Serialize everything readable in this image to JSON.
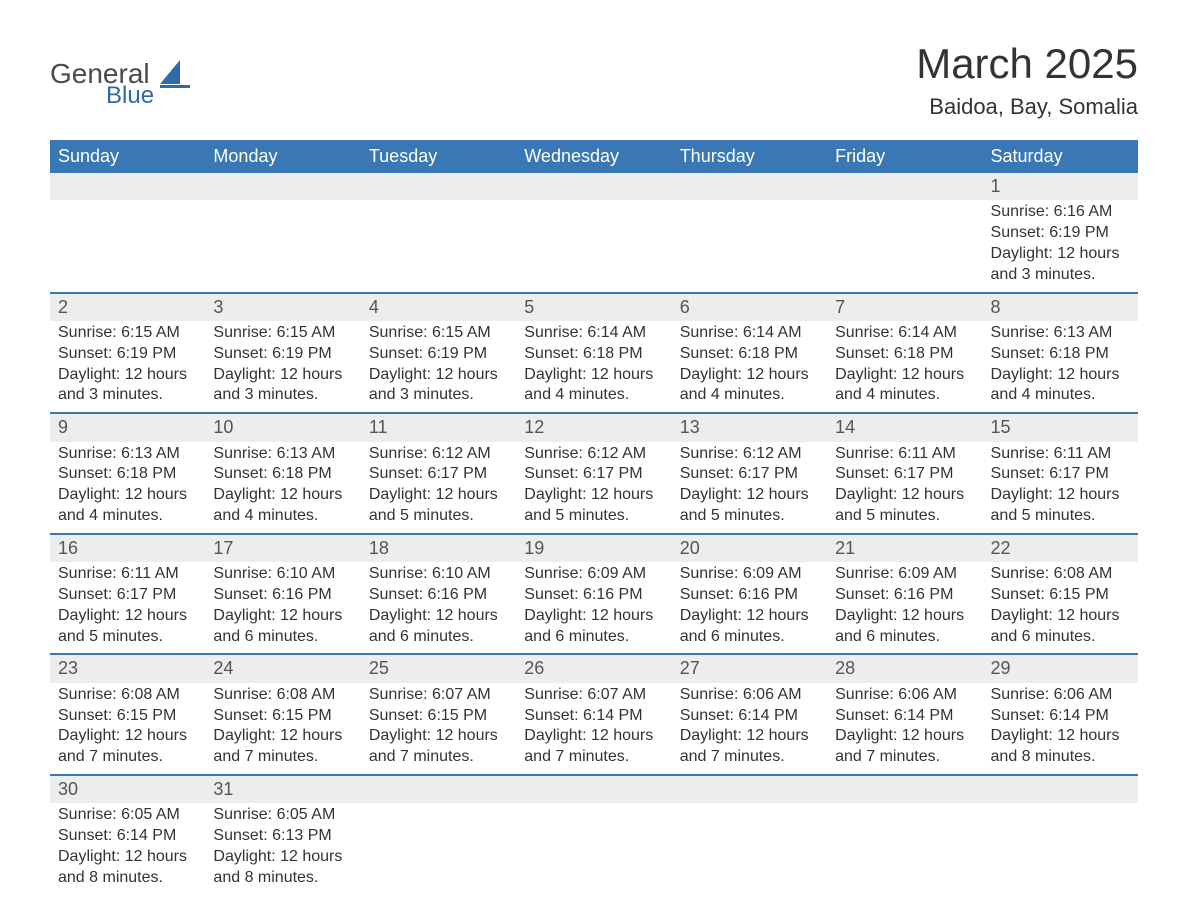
{
  "logo": {
    "word1": "General",
    "word2": "Blue",
    "text_color": "#4a4a4a",
    "accent_color": "#2f6aa8"
  },
  "title": "March 2025",
  "subtitle": "Baidoa, Bay, Somalia",
  "colors": {
    "header_bg": "#3a77b5",
    "header_text": "#ffffff",
    "daynum_bg": "#ededed",
    "week_border": "#3a77b5",
    "body_text": "#333333"
  },
  "day_names": [
    "Sunday",
    "Monday",
    "Tuesday",
    "Wednesday",
    "Thursday",
    "Friday",
    "Saturday"
  ],
  "weeks": [
    [
      null,
      null,
      null,
      null,
      null,
      null,
      {
        "n": "1",
        "sunrise": "Sunrise: 6:16 AM",
        "sunset": "Sunset: 6:19 PM",
        "daylight": "Daylight: 12 hours and 3 minutes."
      }
    ],
    [
      {
        "n": "2",
        "sunrise": "Sunrise: 6:15 AM",
        "sunset": "Sunset: 6:19 PM",
        "daylight": "Daylight: 12 hours and 3 minutes."
      },
      {
        "n": "3",
        "sunrise": "Sunrise: 6:15 AM",
        "sunset": "Sunset: 6:19 PM",
        "daylight": "Daylight: 12 hours and 3 minutes."
      },
      {
        "n": "4",
        "sunrise": "Sunrise: 6:15 AM",
        "sunset": "Sunset: 6:19 PM",
        "daylight": "Daylight: 12 hours and 3 minutes."
      },
      {
        "n": "5",
        "sunrise": "Sunrise: 6:14 AM",
        "sunset": "Sunset: 6:18 PM",
        "daylight": "Daylight: 12 hours and 4 minutes."
      },
      {
        "n": "6",
        "sunrise": "Sunrise: 6:14 AM",
        "sunset": "Sunset: 6:18 PM",
        "daylight": "Daylight: 12 hours and 4 minutes."
      },
      {
        "n": "7",
        "sunrise": "Sunrise: 6:14 AM",
        "sunset": "Sunset: 6:18 PM",
        "daylight": "Daylight: 12 hours and 4 minutes."
      },
      {
        "n": "8",
        "sunrise": "Sunrise: 6:13 AM",
        "sunset": "Sunset: 6:18 PM",
        "daylight": "Daylight: 12 hours and 4 minutes."
      }
    ],
    [
      {
        "n": "9",
        "sunrise": "Sunrise: 6:13 AM",
        "sunset": "Sunset: 6:18 PM",
        "daylight": "Daylight: 12 hours and 4 minutes."
      },
      {
        "n": "10",
        "sunrise": "Sunrise: 6:13 AM",
        "sunset": "Sunset: 6:18 PM",
        "daylight": "Daylight: 12 hours and 4 minutes."
      },
      {
        "n": "11",
        "sunrise": "Sunrise: 6:12 AM",
        "sunset": "Sunset: 6:17 PM",
        "daylight": "Daylight: 12 hours and 5 minutes."
      },
      {
        "n": "12",
        "sunrise": "Sunrise: 6:12 AM",
        "sunset": "Sunset: 6:17 PM",
        "daylight": "Daylight: 12 hours and 5 minutes."
      },
      {
        "n": "13",
        "sunrise": "Sunrise: 6:12 AM",
        "sunset": "Sunset: 6:17 PM",
        "daylight": "Daylight: 12 hours and 5 minutes."
      },
      {
        "n": "14",
        "sunrise": "Sunrise: 6:11 AM",
        "sunset": "Sunset: 6:17 PM",
        "daylight": "Daylight: 12 hours and 5 minutes."
      },
      {
        "n": "15",
        "sunrise": "Sunrise: 6:11 AM",
        "sunset": "Sunset: 6:17 PM",
        "daylight": "Daylight: 12 hours and 5 minutes."
      }
    ],
    [
      {
        "n": "16",
        "sunrise": "Sunrise: 6:11 AM",
        "sunset": "Sunset: 6:17 PM",
        "daylight": "Daylight: 12 hours and 5 minutes."
      },
      {
        "n": "17",
        "sunrise": "Sunrise: 6:10 AM",
        "sunset": "Sunset: 6:16 PM",
        "daylight": "Daylight: 12 hours and 6 minutes."
      },
      {
        "n": "18",
        "sunrise": "Sunrise: 6:10 AM",
        "sunset": "Sunset: 6:16 PM",
        "daylight": "Daylight: 12 hours and 6 minutes."
      },
      {
        "n": "19",
        "sunrise": "Sunrise: 6:09 AM",
        "sunset": "Sunset: 6:16 PM",
        "daylight": "Daylight: 12 hours and 6 minutes."
      },
      {
        "n": "20",
        "sunrise": "Sunrise: 6:09 AM",
        "sunset": "Sunset: 6:16 PM",
        "daylight": "Daylight: 12 hours and 6 minutes."
      },
      {
        "n": "21",
        "sunrise": "Sunrise: 6:09 AM",
        "sunset": "Sunset: 6:16 PM",
        "daylight": "Daylight: 12 hours and 6 minutes."
      },
      {
        "n": "22",
        "sunrise": "Sunrise: 6:08 AM",
        "sunset": "Sunset: 6:15 PM",
        "daylight": "Daylight: 12 hours and 6 minutes."
      }
    ],
    [
      {
        "n": "23",
        "sunrise": "Sunrise: 6:08 AM",
        "sunset": "Sunset: 6:15 PM",
        "daylight": "Daylight: 12 hours and 7 minutes."
      },
      {
        "n": "24",
        "sunrise": "Sunrise: 6:08 AM",
        "sunset": "Sunset: 6:15 PM",
        "daylight": "Daylight: 12 hours and 7 minutes."
      },
      {
        "n": "25",
        "sunrise": "Sunrise: 6:07 AM",
        "sunset": "Sunset: 6:15 PM",
        "daylight": "Daylight: 12 hours and 7 minutes."
      },
      {
        "n": "26",
        "sunrise": "Sunrise: 6:07 AM",
        "sunset": "Sunset: 6:14 PM",
        "daylight": "Daylight: 12 hours and 7 minutes."
      },
      {
        "n": "27",
        "sunrise": "Sunrise: 6:06 AM",
        "sunset": "Sunset: 6:14 PM",
        "daylight": "Daylight: 12 hours and 7 minutes."
      },
      {
        "n": "28",
        "sunrise": "Sunrise: 6:06 AM",
        "sunset": "Sunset: 6:14 PM",
        "daylight": "Daylight: 12 hours and 7 minutes."
      },
      {
        "n": "29",
        "sunrise": "Sunrise: 6:06 AM",
        "sunset": "Sunset: 6:14 PM",
        "daylight": "Daylight: 12 hours and 8 minutes."
      }
    ],
    [
      {
        "n": "30",
        "sunrise": "Sunrise: 6:05 AM",
        "sunset": "Sunset: 6:14 PM",
        "daylight": "Daylight: 12 hours and 8 minutes."
      },
      {
        "n": "31",
        "sunrise": "Sunrise: 6:05 AM",
        "sunset": "Sunset: 6:13 PM",
        "daylight": "Daylight: 12 hours and 8 minutes."
      },
      null,
      null,
      null,
      null,
      null
    ]
  ]
}
